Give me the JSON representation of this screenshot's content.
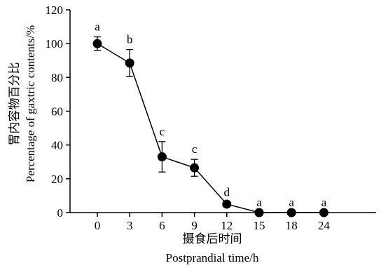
{
  "chart_data": {
    "type": "line",
    "x": [
      "0",
      "3",
      "6",
      "9",
      "12",
      "15",
      "18",
      "24"
    ],
    "series": [
      {
        "values": [
          100,
          88.5,
          33,
          26.5,
          5,
          0,
          0,
          0
        ],
        "errors": [
          4,
          8,
          9,
          5,
          1,
          0,
          0,
          0
        ],
        "labels": [
          "a",
          "b",
          "c",
          "c",
          "d",
          "a",
          "a",
          "a"
        ]
      }
    ],
    "ylim": [
      0,
      120
    ],
    "yticks": [
      0,
      20,
      40,
      60,
      80,
      100,
      120
    ],
    "xlabel_cn": "摄食后时间",
    "xlabel": "Postprandial time/h",
    "ylabel_cn": "胃内容物百分比",
    "ylabel": "Percentage of gaxtric contents/%",
    "grid": false,
    "colors": {
      "line": "#000000",
      "marker": "#000000"
    }
  }
}
